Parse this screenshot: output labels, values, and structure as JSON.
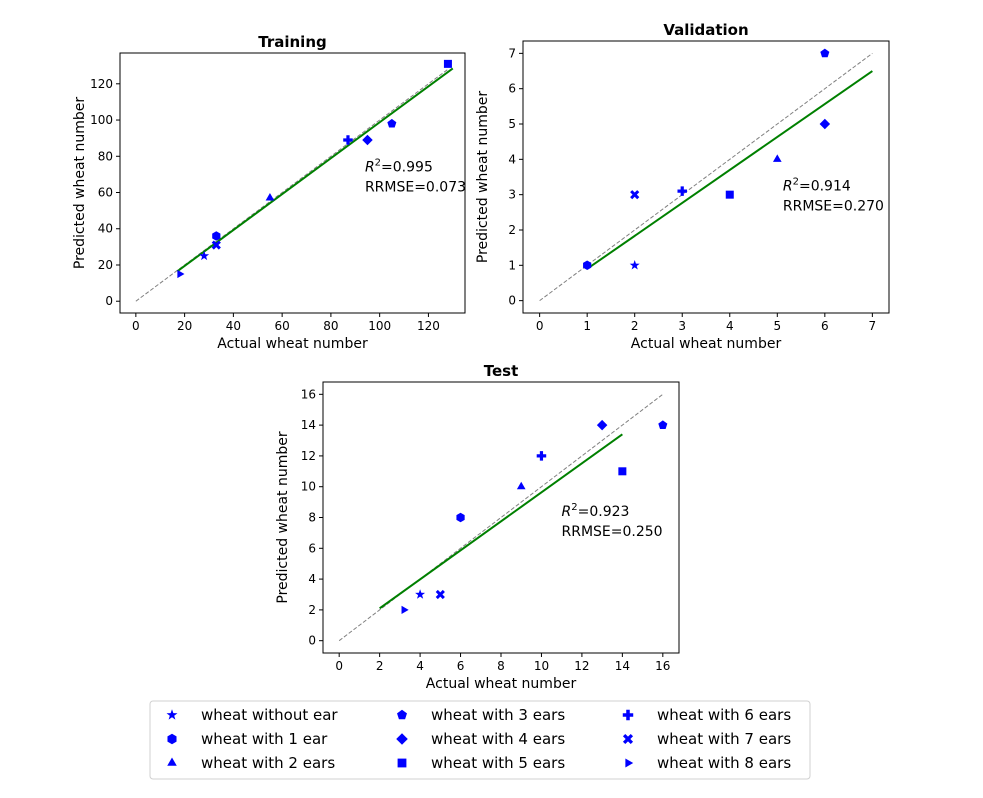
{
  "colors": {
    "marker": "#0000ff",
    "fit": "#008000",
    "identity": "#808080"
  },
  "chart_data": [
    {
      "type": "scatter",
      "title": "Training",
      "xlabel": "Actual wheat number",
      "ylabel": "Predicted wheat number",
      "xlim": [
        -6.5,
        135
      ],
      "ylim": [
        -6.5,
        137
      ],
      "xticks": [
        "0",
        "20",
        "40",
        "60",
        "80",
        "100",
        "120"
      ],
      "yticks": [
        "0",
        "20",
        "40",
        "60",
        "80",
        "100",
        "120"
      ],
      "annotation": {
        "r2_label": "R",
        "r2_value": "=0.995",
        "rrmse": "RRMSE=0.073"
      },
      "identity_line": [
        0,
        128
      ],
      "fit_line": {
        "x": [
          17,
          130
        ],
        "y": [
          16.5,
          128.5
        ]
      },
      "points": [
        {
          "series": "wheat without ear",
          "x": 28,
          "y": 25
        },
        {
          "series": "wheat with 1 ear",
          "x": 33,
          "y": 36
        },
        {
          "series": "wheat with 2 ears",
          "x": 55,
          "y": 57
        },
        {
          "series": "wheat with 3 ears",
          "x": 105,
          "y": 98
        },
        {
          "series": "wheat with 4 ears",
          "x": 95,
          "y": 89
        },
        {
          "series": "wheat with 5 ears",
          "x": 128,
          "y": 131
        },
        {
          "series": "wheat with 6 ears",
          "x": 87,
          "y": 89
        },
        {
          "series": "wheat with 7 ears",
          "x": 33,
          "y": 31
        },
        {
          "series": "wheat with 8 ears",
          "x": 18,
          "y": 15
        }
      ]
    },
    {
      "type": "scatter",
      "title": "Validation",
      "xlabel": "Actual wheat number",
      "ylabel": "Predicted wheat number",
      "xlim": [
        -0.35,
        7.35
      ],
      "ylim": [
        -0.35,
        7.35
      ],
      "xticks": [
        "0",
        "1",
        "2",
        "3",
        "4",
        "5",
        "6",
        "7"
      ],
      "yticks": [
        "0",
        "1",
        "2",
        "3",
        "4",
        "5",
        "6",
        "7"
      ],
      "annotation": {
        "r2_label": "R",
        "r2_value": "=0.914",
        "rrmse": "RRMSE=0.270"
      },
      "identity_line": [
        0,
        7
      ],
      "fit_line": {
        "x": [
          1,
          7
        ],
        "y": [
          0.9,
          6.5
        ]
      },
      "points": [
        {
          "series": "wheat without ear",
          "x": 2,
          "y": 1
        },
        {
          "series": "wheat with 1 ear",
          "x": 1,
          "y": 1
        },
        {
          "series": "wheat with 2 ears",
          "x": 5,
          "y": 4
        },
        {
          "series": "wheat with 3 ears",
          "x": 6,
          "y": 7
        },
        {
          "series": "wheat with 4 ears",
          "x": 6,
          "y": 5
        },
        {
          "series": "wheat with 5 ears",
          "x": 4,
          "y": 3
        },
        {
          "series": "wheat with 6 ears",
          "x": 3,
          "y": 3.1
        },
        {
          "series": "wheat with 7 ears",
          "x": 2,
          "y": 3
        }
      ]
    },
    {
      "type": "scatter",
      "title": "Test",
      "xlabel": "Actual wheat number",
      "ylabel": "Predicted wheat number",
      "xlim": [
        -0.8,
        16.8
      ],
      "ylim": [
        -0.8,
        16.8
      ],
      "xticks": [
        "0",
        "2",
        "4",
        "6",
        "8",
        "10",
        "12",
        "14",
        "16"
      ],
      "yticks": [
        "0",
        "2",
        "4",
        "6",
        "8",
        "10",
        "12",
        "14",
        "16"
      ],
      "annotation": {
        "r2_label": "R",
        "r2_value": "=0.923",
        "rrmse": "RRMSE=0.250"
      },
      "identity_line": [
        0,
        16
      ],
      "fit_line": {
        "x": [
          2,
          14
        ],
        "y": [
          2.1,
          13.4
        ]
      },
      "points": [
        {
          "series": "wheat without ear",
          "x": 4,
          "y": 3
        },
        {
          "series": "wheat with 1 ear",
          "x": 6,
          "y": 8
        },
        {
          "series": "wheat with 2 ears",
          "x": 9,
          "y": 10
        },
        {
          "series": "wheat with 3 ears",
          "x": 16,
          "y": 14
        },
        {
          "series": "wheat with 4 ears",
          "x": 13,
          "y": 14
        },
        {
          "series": "wheat with 5 ears",
          "x": 14,
          "y": 11
        },
        {
          "series": "wheat with 6 ears",
          "x": 10,
          "y": 12
        },
        {
          "series": "wheat with 7 ears",
          "x": 5,
          "y": 3
        },
        {
          "series": "wheat with 8 ears",
          "x": 3.2,
          "y": 2
        }
      ]
    }
  ],
  "legend": {
    "placement": "bottom-center",
    "items": [
      {
        "label": "wheat without ear",
        "marker": "star"
      },
      {
        "label": "wheat with 1 ear",
        "marker": "hexagon"
      },
      {
        "label": "wheat with 2 ears",
        "marker": "triangle-up"
      },
      {
        "label": "wheat with 3 ears",
        "marker": "pentagon"
      },
      {
        "label": "wheat with 4 ears",
        "marker": "diamond"
      },
      {
        "label": "wheat with 5 ears",
        "marker": "square"
      },
      {
        "label": "wheat with 6 ears",
        "marker": "plus"
      },
      {
        "label": "wheat with 7 ears",
        "marker": "x"
      },
      {
        "label": "wheat with 8 ears",
        "marker": "triangle-right"
      }
    ]
  }
}
